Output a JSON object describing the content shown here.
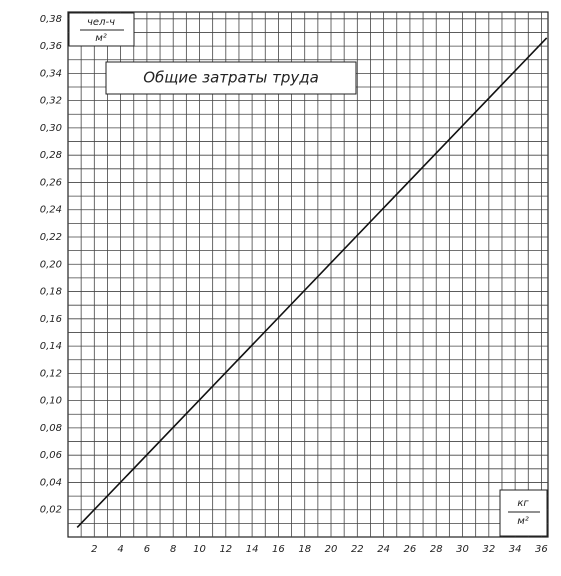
{
  "chart_data": {
    "type": "line",
    "title": "Общие затраты труда",
    "y_unit": {
      "numerator": "чел-ч",
      "denominator": "м²"
    },
    "x_unit": {
      "numerator": "кг",
      "denominator": "м²"
    },
    "x": [
      0.7,
      36.4
    ],
    "values": [
      0.007,
      0.366
    ],
    "color": "#111111",
    "xlim": [
      0,
      36.5
    ],
    "ylim": [
      0,
      0.385
    ],
    "xticks": [
      2,
      4,
      6,
      8,
      10,
      12,
      14,
      16,
      18,
      20,
      22,
      24,
      26,
      28,
      30,
      32,
      34,
      36
    ],
    "xminorticks": [
      1,
      3,
      5,
      7,
      9,
      11,
      13,
      15,
      17,
      19,
      21,
      23,
      25,
      27,
      29,
      31,
      33,
      35
    ],
    "yticks": [
      {
        "value": 0.02,
        "label": "0,02"
      },
      {
        "value": 0.04,
        "label": "0,04"
      },
      {
        "value": 0.06,
        "label": "0,06"
      },
      {
        "value": 0.08,
        "label": "0,08"
      },
      {
        "value": 0.1,
        "label": "0,10"
      },
      {
        "value": 0.12,
        "label": "0,12"
      },
      {
        "value": 0.14,
        "label": "0,14"
      },
      {
        "value": 0.16,
        "label": "0,16"
      },
      {
        "value": 0.18,
        "label": "0,18"
      },
      {
        "value": 0.2,
        "label": "0,20"
      },
      {
        "value": 0.22,
        "label": "0,22"
      },
      {
        "value": 0.24,
        "label": "0,24"
      },
      {
        "value": 0.26,
        "label": "0,26"
      },
      {
        "value": 0.28,
        "label": "0,28"
      },
      {
        "value": 0.3,
        "label": "0,30"
      },
      {
        "value": 0.32,
        "label": "0,32"
      },
      {
        "value": 0.34,
        "label": "0,34"
      },
      {
        "value": 0.36,
        "label": "0,36"
      },
      {
        "value": 0.38,
        "label": "0,38"
      }
    ],
    "yminorticks": [
      0.01,
      0.03,
      0.05,
      0.07,
      0.09,
      0.11,
      0.13,
      0.15,
      0.17,
      0.19,
      0.21,
      0.23,
      0.25,
      0.27,
      0.29,
      0.31,
      0.33,
      0.35,
      0.37
    ],
    "grid": true
  }
}
